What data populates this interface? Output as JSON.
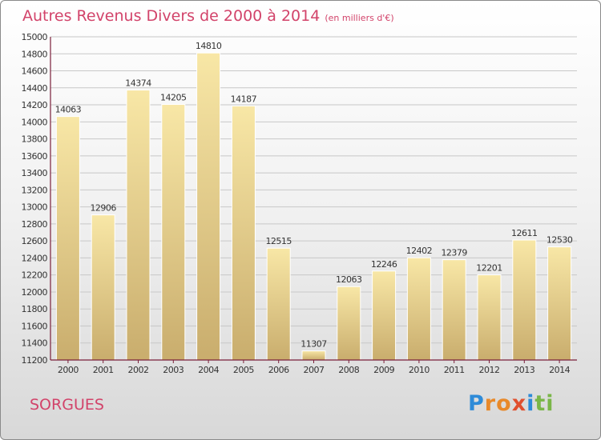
{
  "title": "Autres Revenus Divers de 2000 à 2014",
  "subtitle": "(en milliers d'€)",
  "region": "SORGUES",
  "brand": {
    "letters": [
      "P",
      "r",
      "o",
      "x",
      "i",
      "t",
      "i"
    ],
    "colors": [
      "#2e8bd8",
      "#e8892a",
      "#e8892a",
      "#e0502f",
      "#2e8bd8",
      "#7ab648",
      "#7ab648"
    ]
  },
  "colors": {
    "title": "#d2436a",
    "bar_light": "#f8e7a6",
    "bar_dark": "#c9ad6d",
    "axis": "#7a1f3a"
  },
  "chart_data": {
    "type": "bar",
    "categories": [
      "2000",
      "2001",
      "2002",
      "2003",
      "2004",
      "2005",
      "2006",
      "2007",
      "2008",
      "2009",
      "2010",
      "2011",
      "2012",
      "2013",
      "2014"
    ],
    "values": [
      14063,
      12906,
      14374,
      14205,
      14810,
      14187,
      12515,
      11307,
      12063,
      12246,
      12402,
      12379,
      12201,
      12611,
      12530
    ],
    "ylim": [
      11200,
      15000
    ],
    "yticks": [
      11200,
      11400,
      11600,
      11800,
      12000,
      12200,
      12400,
      12600,
      12800,
      13000,
      13200,
      13400,
      13600,
      13800,
      14000,
      14200,
      14400,
      14600,
      14800,
      15000
    ],
    "grid": true
  }
}
